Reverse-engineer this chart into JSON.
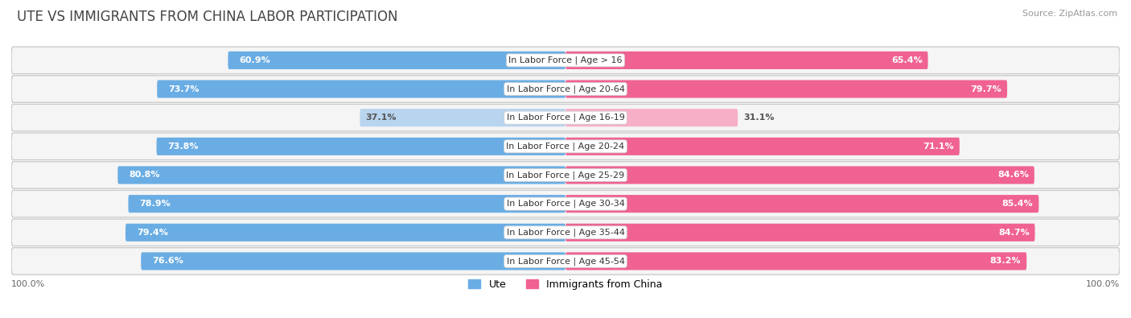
{
  "title": "Ute vs Immigrants from China Labor Participation",
  "source": "Source: ZipAtlas.com",
  "categories": [
    "In Labor Force | Age > 16",
    "In Labor Force | Age 20-64",
    "In Labor Force | Age 16-19",
    "In Labor Force | Age 20-24",
    "In Labor Force | Age 25-29",
    "In Labor Force | Age 30-34",
    "In Labor Force | Age 35-44",
    "In Labor Force | Age 45-54"
  ],
  "ute_values": [
    60.9,
    73.7,
    37.1,
    73.8,
    80.8,
    78.9,
    79.4,
    76.6
  ],
  "china_values": [
    65.4,
    79.7,
    31.1,
    71.1,
    84.6,
    85.4,
    84.7,
    83.2
  ],
  "ute_color": "#6aade4",
  "ute_color_light": "#b8d4ee",
  "china_color": "#f06292",
  "china_color_light": "#f7afc8",
  "row_bg_color": "#e8e8e8",
  "row_inner_bg": "#f5f5f5",
  "center_label_bg": "white",
  "max_val": 100.0,
  "bar_height": 0.62,
  "title_fontsize": 12,
  "cat_fontsize": 8,
  "value_fontsize": 8,
  "legend_fontsize": 9,
  "source_fontsize": 8
}
